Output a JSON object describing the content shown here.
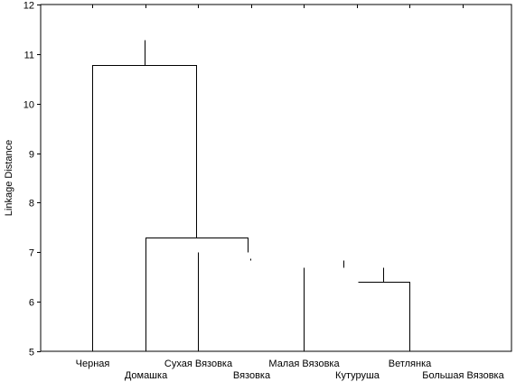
{
  "chart_data": {
    "type": "dendrogram",
    "title": "",
    "xlabel": "",
    "ylabel": "Linkage Distance",
    "ylim": [
      5,
      12
    ],
    "yticks": [
      5,
      6,
      7,
      8,
      9,
      10,
      11,
      12
    ],
    "grid": false,
    "leaves": [
      "Черная",
      "Домашка",
      "Сухая Вязовка",
      "Вязовка",
      "Малая Вязовка",
      "Кутуруша",
      "Ветлянка",
      "Большая Вязовка"
    ],
    "links": [
      {
        "from": [
          0,
          1
        ],
        "height": 10.77,
        "parent_top": 11.28
      },
      {
        "from": [
          1,
          3
        ],
        "height": 7.29,
        "parent_top": 10.77
      },
      {
        "from": [
          2,
          2
        ],
        "height": 7.0,
        "parent_top": 7.0
      },
      {
        "from": [
          3,
          3
        ],
        "height": 6.85,
        "parent_top": 6.85
      },
      {
        "from": [
          4,
          4
        ],
        "height": 6.7,
        "parent_top": 6.7
      },
      {
        "from": [
          5,
          5
        ],
        "height": 6.85,
        "parent_top": 6.7
      },
      {
        "from": [
          5,
          7
        ],
        "height": 6.41,
        "parent_top": 6.7
      }
    ]
  }
}
